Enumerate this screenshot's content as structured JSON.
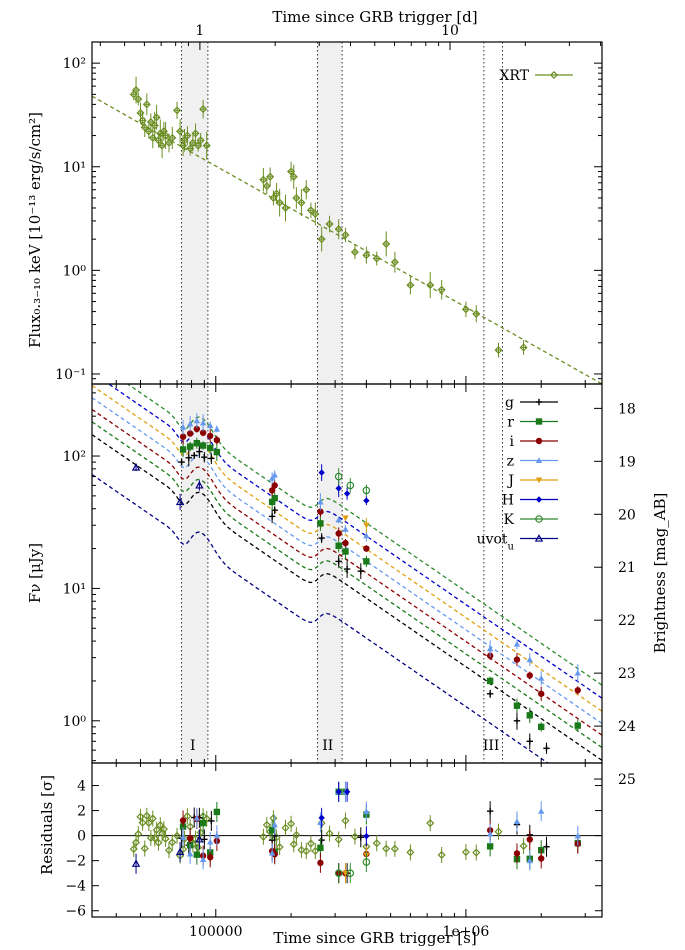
{
  "chart_data": [
    {
      "type": "scatter",
      "panel": "xrt",
      "xlabel_top": "Time since GRB trigger [d]",
      "top_tick_labels": [
        "1",
        "10"
      ],
      "ylabel": "Flux₀.₃₋₁₀ keV [10⁻¹³ erg/s/cm²]",
      "xlim_s": [
        32000,
        3500000
      ],
      "ylim": [
        0.08,
        160
      ],
      "yscale": "log",
      "y_tick_labels": [
        "10⁻¹",
        "10⁰",
        "10¹",
        "10²"
      ],
      "y_tick_values": [
        0.1,
        1,
        10,
        100
      ],
      "legend": {
        "position": "top-right",
        "label": "XRT"
      },
      "color": "#6b8e23",
      "model": {
        "t0": 32000,
        "f0": 48,
        "t1": 3500000,
        "f1": 0.08
      },
      "points": [
        [
          47000,
          50
        ],
        [
          48000,
          55
        ],
        [
          49000,
          45
        ],
        [
          50000,
          33
        ],
        [
          51000,
          28
        ],
        [
          52000,
          24
        ],
        [
          53000,
          40
        ],
        [
          54000,
          22
        ],
        [
          55000,
          27
        ],
        [
          56000,
          19
        ],
        [
          57000,
          25
        ],
        [
          58000,
          30
        ],
        [
          59000,
          18
        ],
        [
          60000,
          21
        ],
        [
          61000,
          16
        ],
        [
          62000,
          22
        ],
        [
          63000,
          20
        ],
        [
          65000,
          17
        ],
        [
          67000,
          19
        ],
        [
          70000,
          35
        ],
        [
          72000,
          22
        ],
        [
          74000,
          16
        ],
        [
          75000,
          18
        ],
        [
          77000,
          20
        ],
        [
          79000,
          15
        ],
        [
          81000,
          17
        ],
        [
          83000,
          21
        ],
        [
          85000,
          16
        ],
        [
          87000,
          18
        ],
        [
          89000,
          36
        ],
        [
          92000,
          16
        ],
        [
          155000,
          7.5
        ],
        [
          160000,
          6.5
        ],
        [
          165000,
          8
        ],
        [
          170000,
          5
        ],
        [
          175000,
          5.5
        ],
        [
          180000,
          4.5
        ],
        [
          190000,
          4
        ],
        [
          200000,
          9
        ],
        [
          205000,
          8
        ],
        [
          210000,
          5
        ],
        [
          220000,
          4.5
        ],
        [
          230000,
          6
        ],
        [
          240000,
          3.8
        ],
        [
          250000,
          3.5
        ],
        [
          265000,
          2.0
        ],
        [
          285000,
          2.8
        ],
        [
          310000,
          2.5
        ],
        [
          330000,
          2.2
        ],
        [
          360000,
          1.5
        ],
        [
          400000,
          1.4
        ],
        [
          440000,
          1.3
        ],
        [
          480000,
          1.8
        ],
        [
          520000,
          1.2
        ],
        [
          600000,
          0.72
        ],
        [
          720000,
          0.72
        ],
        [
          800000,
          0.65
        ],
        [
          1000000,
          0.42
        ],
        [
          1100000,
          0.38
        ],
        [
          1350000,
          0.17
        ],
        [
          1700000,
          0.18
        ]
      ],
      "bands": [
        {
          "label": "I",
          "from": 73000,
          "to": 93000
        },
        {
          "label": "II",
          "from": 255000,
          "to": 320000
        }
      ],
      "lines": [
        {
          "label": "III",
          "from": 1180000,
          "to": 1400000
        }
      ]
    },
    {
      "type": "line",
      "panel": "optical",
      "ylabel": "Fν [μJy]",
      "ylabel_right": "Brightness [mag_AB]",
      "ylim": [
        0.48,
        350
      ],
      "yscale": "log",
      "y_tick_labels": [
        "10⁰",
        "10¹",
        "10²"
      ],
      "y_tick_values": [
        1,
        10,
        100
      ],
      "right_tick_labels": [
        "18",
        "19",
        "20",
        "21",
        "22",
        "23",
        "24",
        "25"
      ],
      "band_labels": [
        "I",
        "II",
        "III"
      ],
      "legend": {
        "position": "top-right"
      },
      "series": [
        {
          "name": "g",
          "color": "#000000",
          "scale": 1.0,
          "marker": "plus",
          "points": [
            [
              73000,
              90
            ],
            [
              78000,
              97
            ],
            [
              82000,
              101
            ],
            [
              86000,
              108
            ],
            [
              90000,
              98
            ],
            [
              96000,
              96
            ],
            [
              168000,
              35
            ],
            [
              172000,
              39
            ],
            [
              265000,
              24
            ],
            [
              310000,
              16
            ],
            [
              335000,
              14
            ],
            [
              380000,
              13.5
            ],
            [
              1250000,
              1.6
            ],
            [
              1600000,
              1.0
            ],
            [
              1800000,
              0.7
            ],
            [
              2100000,
              0.62
            ]
          ]
        },
        {
          "name": "r",
          "color": "#1a7a1a",
          "scale": 1.25,
          "marker": "square",
          "points": [
            [
              74000,
              112
            ],
            [
              79000,
              118
            ],
            [
              84000,
              125
            ],
            [
              89000,
              120
            ],
            [
              95000,
              115
            ],
            [
              101000,
              107
            ],
            [
              168000,
              45
            ],
            [
              172000,
              48
            ],
            [
              262000,
              31
            ],
            [
              310000,
              21
            ],
            [
              330000,
              19
            ],
            [
              400000,
              16
            ],
            [
              1250000,
              2.0
            ],
            [
              1600000,
              1.3
            ],
            [
              1800000,
              1.1
            ],
            [
              2000000,
              0.9
            ],
            [
              2800000,
              0.92
            ]
          ]
        },
        {
          "name": "i",
          "color": "#8b0000",
          "scale": 1.55,
          "marker": "circle",
          "points": [
            [
              74000,
              140
            ],
            [
              79000,
              148
            ],
            [
              84000,
              160
            ],
            [
              89000,
              150
            ],
            [
              95000,
              142
            ],
            [
              101000,
              132
            ],
            [
              168000,
              55
            ],
            [
              172000,
              60
            ],
            [
              262000,
              38
            ],
            [
              310000,
              26
            ],
            [
              330000,
              22
            ],
            [
              400000,
              20
            ],
            [
              1250000,
              3.1
            ],
            [
              1600000,
              2.9
            ],
            [
              1800000,
              2.2
            ],
            [
              2000000,
              1.6
            ],
            [
              2800000,
              1.7
            ]
          ]
        },
        {
          "name": "z",
          "color": "#6699ee",
          "scale": 1.9,
          "marker": "triangle",
          "points": [
            [
              74000,
              165
            ],
            [
              79000,
              175
            ],
            [
              84000,
              185
            ],
            [
              89000,
              178
            ],
            [
              95000,
              170
            ],
            [
              101000,
              160
            ],
            [
              168000,
              68
            ],
            [
              172000,
              72
            ],
            [
              262000,
              45
            ],
            [
              310000,
              33
            ],
            [
              330000,
              28
            ],
            [
              400000,
              25
            ],
            [
              1250000,
              3.5
            ],
            [
              1600000,
              3.8
            ],
            [
              1800000,
              2.9
            ],
            [
              2000000,
              2.1
            ],
            [
              2800000,
              2.3
            ]
          ]
        },
        {
          "name": "J",
          "color": "#e0a010",
          "scale": 2.35,
          "marker": "triangle-down",
          "points": [
            [
              330000,
              34
            ],
            [
              400000,
              30
            ]
          ]
        },
        {
          "name": "H",
          "color": "#0000cc",
          "scale": 2.95,
          "marker": "diamond",
          "points": [
            [
              265000,
              75
            ],
            [
              310000,
              57
            ],
            [
              335000,
              52
            ],
            [
              400000,
              46
            ]
          ]
        },
        {
          "name": "K",
          "color": "#2e8b2e",
          "scale": 3.7,
          "marker": "open-circle",
          "points": [
            [
              310000,
              70
            ],
            [
              345000,
              60
            ],
            [
              400000,
              55
            ]
          ]
        },
        {
          "name": "uvot_u",
          "color": "#000080",
          "scale": 0.5,
          "marker": "open-triangle",
          "points": [
            [
              48000,
              82
            ],
            [
              72000,
              45
            ],
            [
              86000,
              60
            ]
          ]
        }
      ],
      "model": {
        "t0": 32000,
        "f0": 145,
        "slope": -1.3,
        "bump_center": 260000,
        "dip_center": 75000
      }
    },
    {
      "type": "scatter",
      "panel": "residuals",
      "ylabel": "Residuals [σ]",
      "xlabel": "Time since GRB trigger [s]",
      "x_tick_labels": [
        "100000",
        "1e+06"
      ],
      "ylim": [
        -6.5,
        5.8
      ],
      "y_tick_labels": [
        "−6",
        "−4",
        "−2",
        "0",
        "2",
        "4"
      ],
      "y_tick_values": [
        -6,
        -4,
        -2,
        0,
        2,
        4
      ]
    }
  ]
}
